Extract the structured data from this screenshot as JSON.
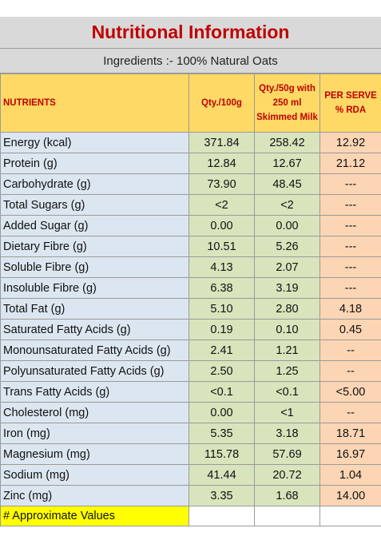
{
  "title": "Nutritional Information",
  "ingredients": "Ingredients :- 100% Natural Oats",
  "headers": {
    "nutrients": "NUTRIENTS",
    "qty100": "Qty./100g",
    "qty50": "Qty./50g with 250 ml Skimmed Milk",
    "rda": "PER SERVE % RDA"
  },
  "rows": [
    {
      "name": "Energy (kcal)",
      "q100": "371.84",
      "q50": "258.42",
      "rda": "12.92"
    },
    {
      "name": "Protein (g)",
      "q100": "12.84",
      "q50": "12.67",
      "rda": "21.12"
    },
    {
      "name": "Carbohydrate (g)",
      "q100": "73.90",
      "q50": "48.45",
      "rda": "---"
    },
    {
      "name": "Total Sugars (g)",
      "q100": "<2",
      "q50": "<2",
      "rda": "---"
    },
    {
      "name": "Added Sugar (g)",
      "q100": "0.00",
      "q50": "0.00",
      "rda": "---"
    },
    {
      "name": "Dietary Fibre (g)",
      "q100": "10.51",
      "q50": "5.26",
      "rda": "---"
    },
    {
      "name": "Soluble Fibre (g)",
      "q100": "4.13",
      "q50": "2.07",
      "rda": "---"
    },
    {
      "name": "Insoluble Fibre (g)",
      "q100": "6.38",
      "q50": "3.19",
      "rda": "---"
    },
    {
      "name": "Total Fat (g)",
      "q100": "5.10",
      "q50": "2.80",
      "rda": "4.18"
    },
    {
      "name": "Saturated Fatty Acids (g)",
      "q100": "0.19",
      "q50": "0.10",
      "rda": "0.45"
    },
    {
      "name": "Monounsaturated Fatty Acids (g)",
      "q100": "2.41",
      "q50": "1.21",
      "rda": "--"
    },
    {
      "name": "Polyunsaturated Fatty Acids (g)",
      "q100": "2.50",
      "q50": "1.25",
      "rda": "--"
    },
    {
      "name": "Trans Fatty Acids (g)",
      "q100": "<0.1",
      "q50": "<0.1",
      "rda": "<5.00"
    },
    {
      "name": "Cholesterol (mg)",
      "q100": "0.00",
      "q50": "<1",
      "rda": "--"
    },
    {
      "name": "Iron (mg)",
      "q100": "5.35",
      "q50": "3.18",
      "rda": "18.71"
    },
    {
      "name": "Magnesium (mg)",
      "q100": "115.78",
      "q50": "57.69",
      "rda": "16.97"
    },
    {
      "name": "Sodium (mg)",
      "q100": "41.44",
      "q50": "20.72",
      "rda": "1.04"
    },
    {
      "name": "Zinc (mg)",
      "q100": "3.35",
      "q50": "1.68",
      "rda": "14.00"
    }
  ],
  "footnote": "# Approximate Values",
  "colors": {
    "title_text": "#c00000",
    "header_fill": "#ffd966",
    "nutrient_fill": "#dce6f1",
    "qty_fill": "#d8e4bc",
    "rda_fill": "#fcd5b4",
    "footnote_fill": "#ffff00"
  }
}
